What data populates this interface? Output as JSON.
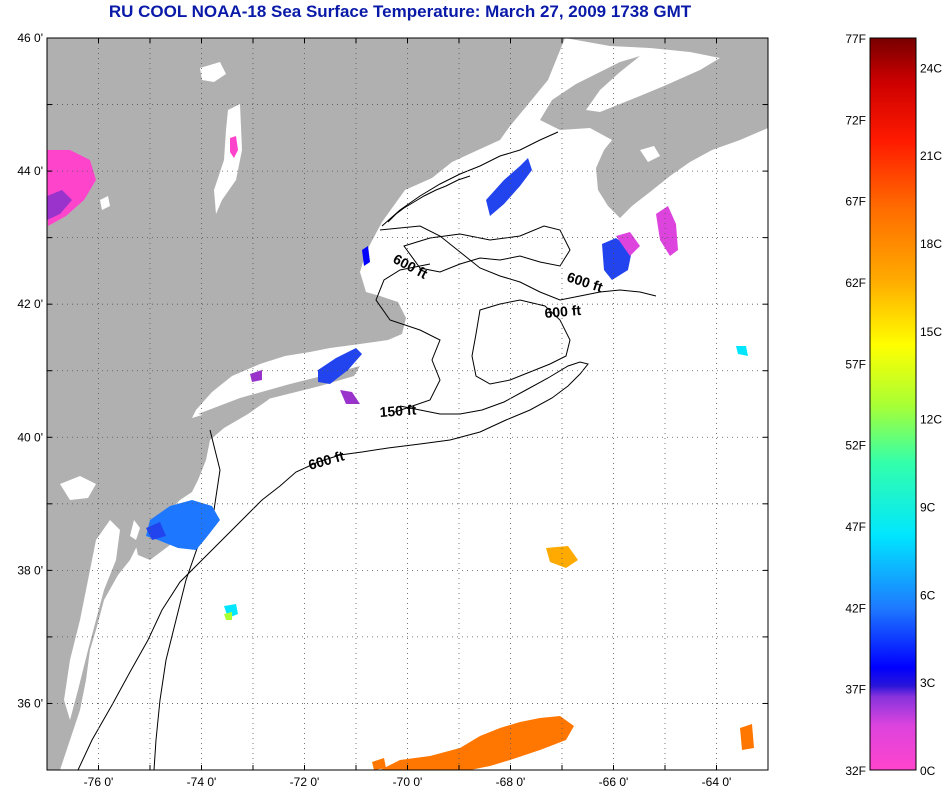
{
  "title": "RU COOL  NOAA-18  Sea Surface Temperature:  March 27, 2009 1738 GMT",
  "lat_ticks": [
    {
      "value": 46,
      "label": "46 0'"
    },
    {
      "value": 44,
      "label": "44 0'"
    },
    {
      "value": 42,
      "label": "42 0'"
    },
    {
      "value": 40,
      "label": "40 0'"
    },
    {
      "value": 38,
      "label": "38 0'"
    },
    {
      "value": 36,
      "label": "36 0'"
    }
  ],
  "lon_ticks": [
    {
      "value": -76,
      "label": "-76 0'"
    },
    {
      "value": -74,
      "label": "-74 0'"
    },
    {
      "value": -72,
      "label": "-72 0'"
    },
    {
      "value": -70,
      "label": "-70 0'"
    },
    {
      "value": -68,
      "label": "-68 0'"
    },
    {
      "value": -66,
      "label": "-66 0'"
    },
    {
      "value": -64,
      "label": "-64 0'"
    }
  ],
  "contour_labels": [
    {
      "text": "600 ft",
      "id": "contour-label-gulf-maine-west"
    },
    {
      "text": "600 ft",
      "id": "contour-label-scotian"
    },
    {
      "text": "600 ft",
      "id": "contour-label-georges"
    },
    {
      "text": "150 ft",
      "id": "contour-label-150"
    },
    {
      "text": "600 ft",
      "id": "contour-label-shelf"
    }
  ],
  "colorbar": {
    "fahrenheit_labels": [
      "77F",
      "72F",
      "67F",
      "62F",
      "57F",
      "52F",
      "47F",
      "42F",
      "37F",
      "32F"
    ],
    "celsius_labels": [
      "24C",
      "21C",
      "18C",
      "15C",
      "12C",
      "9C",
      "6C",
      "3C",
      "0C"
    ],
    "colors": [
      "#ff44cc",
      "#aa33dd",
      "#2a14d8",
      "#0000ff",
      "#1e78ff",
      "#00e6ff",
      "#33ffaa",
      "#aaff33",
      "#ffff00",
      "#ffaa00",
      "#ff7700",
      "#ff2200",
      "#cc0000",
      "#770000"
    ]
  },
  "colors": {
    "land": "#b0b0b0",
    "ocean": "#ffffff",
    "title": "#0a1aa8"
  }
}
